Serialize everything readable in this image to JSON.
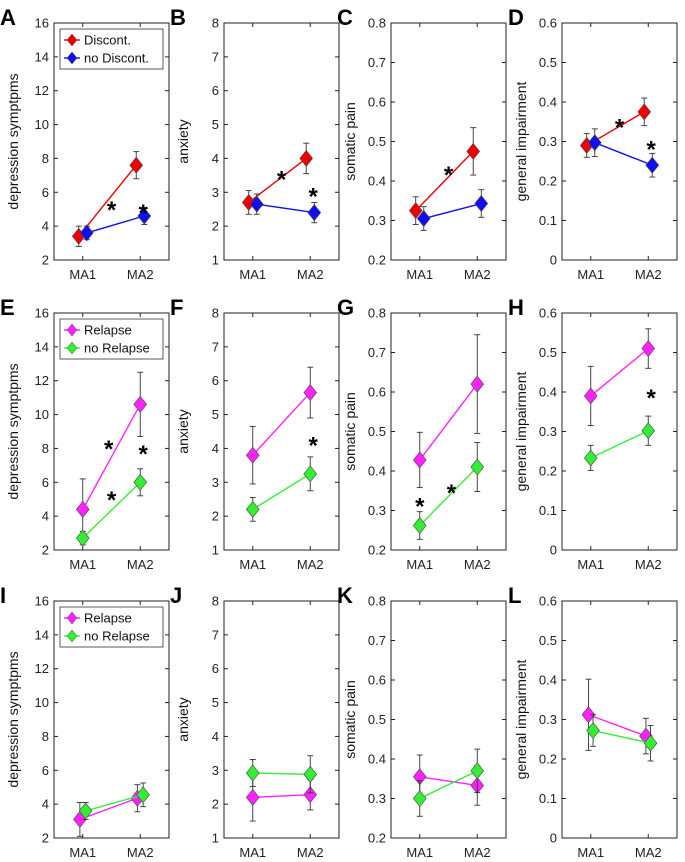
{
  "colors": {
    "red": "#ee0000",
    "blue": "#1010ee",
    "magenta": "#ff22ff",
    "green": "#33ee33"
  },
  "chart_data": [
    {
      "id": "A",
      "type": "line",
      "letter": "A",
      "ylabel": "depression symptpms",
      "ylim": [
        2,
        16
      ],
      "yticks": [
        2,
        4,
        6,
        8,
        10,
        12,
        14,
        16
      ],
      "categories": [
        "MA1",
        "MA2"
      ],
      "legend": true,
      "stars": [
        {
          "x": 1.5,
          "y": 5.2
        },
        {
          "x": 2.05,
          "y": 5.0
        }
      ],
      "series": [
        {
          "name": "Discont.",
          "color": "red",
          "values": [
            3.4,
            7.6
          ],
          "err": [
            0.6,
            0.8
          ],
          "offset": -0.07
        },
        {
          "name": "no Discont.",
          "color": "blue",
          "values": [
            3.6,
            4.6
          ],
          "err": [
            0.4,
            0.5
          ],
          "offset": 0.07
        }
      ]
    },
    {
      "id": "B",
      "type": "line",
      "letter": "B",
      "ylabel": "anxiety",
      "ylim": [
        1,
        8
      ],
      "yticks": [
        1,
        2,
        3,
        4,
        5,
        6,
        7,
        8
      ],
      "categories": [
        "MA1",
        "MA2"
      ],
      "legend": false,
      "stars": [
        {
          "x": 1.5,
          "y": 3.5
        },
        {
          "x": 2.05,
          "y": 3.0
        }
      ],
      "series": [
        {
          "name": "Discont.",
          "color": "red",
          "values": [
            2.7,
            4.0
          ],
          "err": [
            0.35,
            0.45
          ],
          "offset": -0.07
        },
        {
          "name": "no Discont.",
          "color": "blue",
          "values": [
            2.65,
            2.4
          ],
          "err": [
            0.3,
            0.3
          ],
          "offset": 0.07
        }
      ]
    },
    {
      "id": "C",
      "type": "line",
      "letter": "C",
      "ylabel": "somatic pain",
      "ylim": [
        0.2,
        0.8
      ],
      "yticks": [
        0.2,
        0.3,
        0.4,
        0.5,
        0.6,
        0.7,
        0.8
      ],
      "categories": [
        "MA1",
        "MA2"
      ],
      "legend": false,
      "stars": [
        {
          "x": 1.5,
          "y": 0.425
        }
      ],
      "series": [
        {
          "name": "Discont.",
          "color": "red",
          "values": [
            0.325,
            0.475
          ],
          "err": [
            0.035,
            0.06
          ],
          "offset": -0.07
        },
        {
          "name": "no Discont.",
          "color": "blue",
          "values": [
            0.305,
            0.343
          ],
          "err": [
            0.03,
            0.035
          ],
          "offset": 0.07
        }
      ]
    },
    {
      "id": "D",
      "type": "line",
      "letter": "D",
      "ylabel": "general impairment",
      "ylim": [
        0,
        0.6
      ],
      "yticks": [
        0,
        0.1,
        0.2,
        0.3,
        0.4,
        0.5,
        0.6
      ],
      "categories": [
        "MA1",
        "MA2"
      ],
      "legend": false,
      "stars": [
        {
          "x": 1.5,
          "y": 0.345
        },
        {
          "x": 2.05,
          "y": 0.29
        }
      ],
      "series": [
        {
          "name": "Discont.",
          "color": "red",
          "values": [
            0.29,
            0.375
          ],
          "err": [
            0.03,
            0.035
          ],
          "offset": -0.07
        },
        {
          "name": "no Discont.",
          "color": "blue",
          "values": [
            0.297,
            0.24
          ],
          "err": [
            0.035,
            0.03
          ],
          "offset": 0.07
        }
      ]
    },
    {
      "id": "E",
      "type": "line",
      "letter": "E",
      "ylabel": "depression symptpms",
      "ylim": [
        2,
        16
      ],
      "yticks": [
        2,
        4,
        6,
        8,
        10,
        12,
        14,
        16
      ],
      "categories": [
        "MA1",
        "MA2"
      ],
      "legend": true,
      "stars": [
        {
          "x": 1.45,
          "y": 8.2
        },
        {
          "x": 2.05,
          "y": 7.9
        },
        {
          "x": 1.5,
          "y": 5.2
        }
      ],
      "series": [
        {
          "name": "Relapse",
          "color": "magenta",
          "values": [
            4.4,
            10.6
          ],
          "err": [
            1.8,
            1.9
          ],
          "offset": 0
        },
        {
          "name": "no Relapse",
          "color": "green",
          "values": [
            2.7,
            6.0
          ],
          "err": [
            0.4,
            0.8
          ],
          "offset": 0
        }
      ]
    },
    {
      "id": "F",
      "type": "line",
      "letter": "F",
      "ylabel": "anxiety",
      "ylim": [
        1,
        8
      ],
      "yticks": [
        1,
        2,
        3,
        4,
        5,
        6,
        7,
        8
      ],
      "categories": [
        "MA1",
        "MA2"
      ],
      "legend": false,
      "stars": [
        {
          "x": 2.05,
          "y": 4.2
        }
      ],
      "series": [
        {
          "name": "Relapse",
          "color": "magenta",
          "values": [
            3.8,
            5.65
          ],
          "err": [
            0.85,
            0.75
          ],
          "offset": 0
        },
        {
          "name": "no Relapse",
          "color": "green",
          "values": [
            2.2,
            3.25
          ],
          "err": [
            0.35,
            0.5
          ],
          "offset": 0
        }
      ]
    },
    {
      "id": "G",
      "type": "line",
      "letter": "G",
      "ylabel": "somatic pain",
      "ylim": [
        0.2,
        0.8
      ],
      "yticks": [
        0.2,
        0.3,
        0.4,
        0.5,
        0.6,
        0.7,
        0.8
      ],
      "categories": [
        "MA1",
        "MA2"
      ],
      "legend": false,
      "stars": [
        {
          "x": 1.0,
          "y": 0.32
        },
        {
          "x": 1.55,
          "y": 0.355
        }
      ],
      "series": [
        {
          "name": "Relapse",
          "color": "magenta",
          "values": [
            0.428,
            0.62
          ],
          "err": [
            0.07,
            0.125
          ],
          "offset": 0
        },
        {
          "name": "no Relapse",
          "color": "green",
          "values": [
            0.262,
            0.41
          ],
          "err": [
            0.035,
            0.062
          ],
          "offset": 0
        }
      ]
    },
    {
      "id": "H",
      "type": "line",
      "letter": "H",
      "ylabel": "general impairment",
      "ylim": [
        0,
        0.6
      ],
      "yticks": [
        0,
        0.1,
        0.2,
        0.3,
        0.4,
        0.5,
        0.6
      ],
      "categories": [
        "MA1",
        "MA2"
      ],
      "legend": false,
      "stars": [
        {
          "x": 2.05,
          "y": 0.395
        }
      ],
      "series": [
        {
          "name": "Relapse",
          "color": "magenta",
          "values": [
            0.39,
            0.51
          ],
          "err": [
            0.075,
            0.05
          ],
          "offset": 0
        },
        {
          "name": "no Relapse",
          "color": "green",
          "values": [
            0.233,
            0.302
          ],
          "err": [
            0.032,
            0.037
          ],
          "offset": 0
        }
      ]
    },
    {
      "id": "I",
      "type": "line",
      "letter": "I",
      "ylabel": "depression symptpms",
      "ylim": [
        2,
        16
      ],
      "yticks": [
        2,
        4,
        6,
        8,
        10,
        12,
        14,
        16
      ],
      "categories": [
        "MA1",
        "MA2"
      ],
      "legend": true,
      "stars": [],
      "series": [
        {
          "name": "Relapse",
          "color": "magenta",
          "values": [
            3.1,
            4.35
          ],
          "err": [
            1.0,
            0.8
          ],
          "offset": -0.05
        },
        {
          "name": "no Relapse",
          "color": "green",
          "values": [
            3.6,
            4.55
          ],
          "err": [
            0.5,
            0.7
          ],
          "offset": 0.05
        }
      ]
    },
    {
      "id": "J",
      "type": "line",
      "letter": "J",
      "ylabel": "anxiety",
      "ylim": [
        1,
        8
      ],
      "yticks": [
        1,
        2,
        3,
        4,
        5,
        6,
        7,
        8
      ],
      "categories": [
        "MA1",
        "MA2"
      ],
      "legend": false,
      "stars": [],
      "series": [
        {
          "name": "Relapse",
          "color": "magenta",
          "values": [
            2.2,
            2.28
          ],
          "err": [
            0.7,
            0.45
          ],
          "offset": 0
        },
        {
          "name": "no Relapse",
          "color": "green",
          "values": [
            2.92,
            2.88
          ],
          "err": [
            0.4,
            0.55
          ],
          "offset": 0
        }
      ]
    },
    {
      "id": "K",
      "type": "line",
      "letter": "K",
      "ylabel": "somatic pain",
      "ylim": [
        0.2,
        0.8
      ],
      "yticks": [
        0.2,
        0.3,
        0.4,
        0.5,
        0.6,
        0.7,
        0.8
      ],
      "categories": [
        "MA1",
        "MA2"
      ],
      "legend": false,
      "stars": [],
      "series": [
        {
          "name": "Relapse",
          "color": "magenta",
          "values": [
            0.355,
            0.333
          ],
          "err": [
            0.055,
            0.05
          ],
          "offset": 0
        },
        {
          "name": "no Relapse",
          "color": "green",
          "values": [
            0.3,
            0.37
          ],
          "err": [
            0.045,
            0.055
          ],
          "offset": 0
        }
      ]
    },
    {
      "id": "L",
      "type": "line",
      "letter": "L",
      "ylabel": "general impairment",
      "ylim": [
        0,
        0.6
      ],
      "yticks": [
        0,
        0.1,
        0.2,
        0.3,
        0.4,
        0.5,
        0.6
      ],
      "categories": [
        "MA1",
        "MA2"
      ],
      "legend": false,
      "stars": [],
      "series": [
        {
          "name": "Relapse",
          "color": "magenta",
          "values": [
            0.312,
            0.258
          ],
          "err": [
            0.09,
            0.045
          ],
          "offset": -0.04
        },
        {
          "name": "no Relapse",
          "color": "green",
          "values": [
            0.272,
            0.24
          ],
          "err": [
            0.04,
            0.045
          ],
          "offset": 0.04
        }
      ]
    }
  ],
  "star_symbol": "*"
}
